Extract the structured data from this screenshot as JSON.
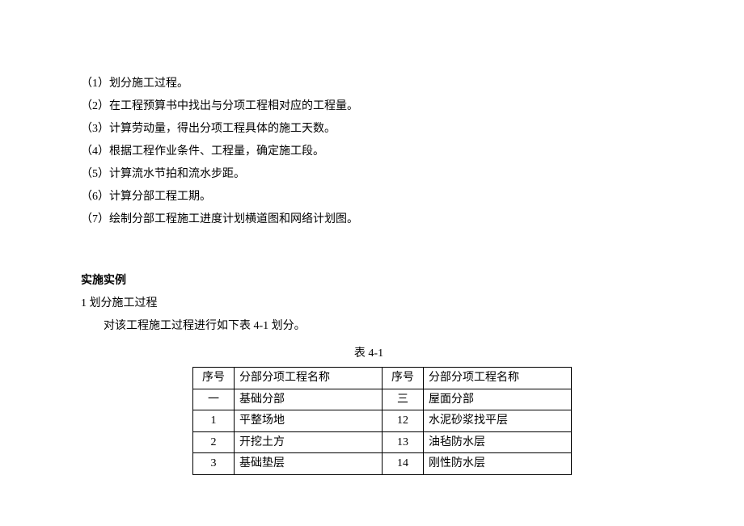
{
  "steps": [
    "（1）划分施工过程。",
    "（2）在工程预算书中找出与分项工程相对应的工程量。",
    "（3）计算劳动量，得出分项工程具体的施工天数。",
    "（4）根据工程作业条件、工程量，确定施工段。",
    "（5）计算流水节拍和流水步距。",
    "（6）计算分部工程工期。",
    "（7）绘制分部工程施工进度计划横道图和网络计划图。"
  ],
  "section": {
    "heading": "实施实例",
    "subheading": "1 划分施工过程",
    "paragraph": "对该工程施工过程进行如下表 4-1 划分。"
  },
  "table": {
    "caption": "表 4-1",
    "header": {
      "idx_left": "序号",
      "name_left": "分部分项工程名称",
      "idx_right": "序号",
      "name_right": "分部分项工程名称"
    },
    "rows": [
      {
        "l_idx": "一",
        "l_name": "基础分部",
        "r_idx": "三",
        "r_name": "屋面分部"
      },
      {
        "l_idx": "1",
        "l_name": "平整场地",
        "r_idx": "12",
        "r_name": "水泥砂浆找平层"
      },
      {
        "l_idx": "2",
        "l_name": "开挖土方",
        "r_idx": "13",
        "r_name": "油毡防水层"
      },
      {
        "l_idx": "3",
        "l_name": "基础垫层",
        "r_idx": "14",
        "r_name": "刚性防水层"
      }
    ]
  }
}
